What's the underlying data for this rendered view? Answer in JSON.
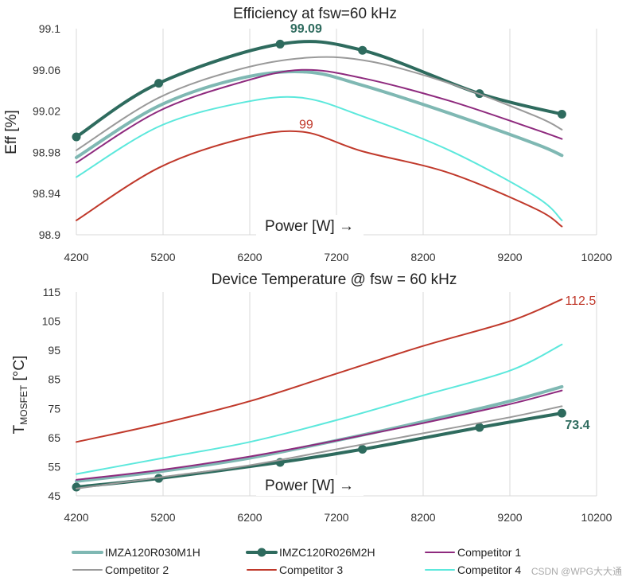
{
  "chart_data": [
    {
      "type": "line",
      "title": "Efficiency at fsw=60 kHz",
      "xlabel": "Power [W] →",
      "ylabel": "Eff [%]",
      "x_ticks": [
        "4200",
        "5200",
        "6200",
        "7200",
        "8200",
        "9200",
        "10200"
      ],
      "y_ticks": [
        "98.9",
        "98.94",
        "98.98",
        "99.02",
        "99.06",
        "99.1"
      ],
      "xlim": [
        4200,
        10200
      ],
      "ylim": [
        98.9,
        99.1
      ],
      "grid": "vertical",
      "annotations": [
        {
          "text": "99.09",
          "x": 6850,
          "y": 99.09,
          "color": "#2e6b5e",
          "bold": true
        },
        {
          "text": "99",
          "x": 6850,
          "y": 99.0,
          "color": "#c0392b",
          "bold": false
        }
      ],
      "series": [
        {
          "name": "IMZA120R030M1H",
          "color": "#7fb8b3",
          "width": 4,
          "x": [
            4200,
            5150,
            6100,
            6850,
            7500,
            8500,
            9500,
            9800
          ],
          "y": [
            98.975,
            99.025,
            99.052,
            99.058,
            99.045,
            99.018,
            98.988,
            98.977
          ]
        },
        {
          "name": "IMZC120R026M2H",
          "color": "#2e6b5e",
          "width": 4,
          "markers": true,
          "x": [
            4200,
            5150,
            6550,
            7500,
            8850,
            9800
          ],
          "y": [
            98.995,
            99.047,
            99.085,
            99.079,
            99.037,
            99.017
          ]
        },
        {
          "name": "Competitor 1",
          "color": "#8e2a7e",
          "width": 2,
          "x": [
            4200,
            5150,
            6100,
            6800,
            7500,
            8500,
            9500,
            9800
          ],
          "y": [
            98.97,
            99.02,
            99.048,
            99.06,
            99.052,
            99.03,
            99.002,
            98.993
          ]
        },
        {
          "name": "Competitor 2",
          "color": "#9a9a9a",
          "width": 2,
          "x": [
            4200,
            5150,
            6100,
            6900,
            7600,
            8500,
            9500,
            9800
          ],
          "y": [
            98.982,
            99.033,
            99.061,
            99.072,
            99.068,
            99.047,
            99.015,
            99.002
          ]
        },
        {
          "name": "Competitor 3",
          "color": "#c0392b",
          "width": 2,
          "x": [
            4200,
            5150,
            6100,
            6800,
            7500,
            8500,
            9500,
            9800
          ],
          "y": [
            98.914,
            98.965,
            98.993,
            99.0,
            98.981,
            98.96,
            98.925,
            98.908
          ]
        },
        {
          "name": "Competitor 4",
          "color": "#5ce8dc",
          "width": 2,
          "x": [
            4200,
            5150,
            6100,
            6800,
            7500,
            8500,
            9500,
            9800
          ],
          "y": [
            98.956,
            99.005,
            99.028,
            99.033,
            99.015,
            98.982,
            98.937,
            98.914
          ]
        }
      ]
    },
    {
      "type": "line",
      "title": "Device Temperature @ fsw = 60 kHz",
      "xlabel": "Power [W] →",
      "ylabel": "TMOSFET [°C]",
      "ylabel_main": "T",
      "ylabel_sub": "MOSFET",
      "ylabel_unit": " [°C]",
      "x_ticks": [
        "4200",
        "5200",
        "6200",
        "7200",
        "8200",
        "9200",
        "10200"
      ],
      "y_ticks": [
        "45",
        "55",
        "65",
        "75",
        "85",
        "95",
        "105",
        "115"
      ],
      "xlim": [
        4200,
        10200
      ],
      "ylim": [
        45,
        115
      ],
      "grid": "vertical",
      "annotations": [
        {
          "text": "112.5",
          "x": 9800,
          "y": 112.5,
          "color": "#c0392b",
          "bold": false
        },
        {
          "text": "73.4",
          "x": 9800,
          "y": 73.4,
          "color": "#2e6b5e",
          "bold": true
        }
      ],
      "series": [
        {
          "name": "IMZA120R030M1H",
          "color": "#7fb8b3",
          "width": 4,
          "x": [
            4200,
            5200,
            6200,
            7200,
            8200,
            9200,
            9800
          ],
          "y": [
            50,
            53.5,
            58,
            64,
            70.5,
            77.5,
            82.5
          ]
        },
        {
          "name": "IMZC120R026M2H",
          "color": "#2e6b5e",
          "width": 4,
          "markers": true,
          "x": [
            4200,
            5150,
            6550,
            7500,
            8850,
            9800
          ],
          "y": [
            48,
            51,
            56.5,
            61,
            68.5,
            73.4
          ]
        },
        {
          "name": "Competitor 1",
          "color": "#8e2a7e",
          "width": 2,
          "x": [
            4200,
            5200,
            6200,
            7200,
            8200,
            9200,
            9800
          ],
          "y": [
            50.5,
            54,
            58.5,
            64,
            70,
            76.5,
            81.2
          ]
        },
        {
          "name": "Competitor 2",
          "color": "#9a9a9a",
          "width": 2,
          "x": [
            4200,
            5200,
            6200,
            7200,
            8200,
            9200,
            9800
          ],
          "y": [
            47.5,
            51.5,
            55.5,
            61,
            66.5,
            72,
            75.8
          ]
        },
        {
          "name": "Competitor 3",
          "color": "#c0392b",
          "width": 2,
          "x": [
            4200,
            5200,
            6200,
            7200,
            8200,
            9200,
            9800
          ],
          "y": [
            63.5,
            70,
            77.5,
            87,
            96.5,
            105,
            112.5
          ]
        },
        {
          "name": "Competitor 4",
          "color": "#5ce8dc",
          "width": 2,
          "x": [
            4200,
            5200,
            6200,
            7200,
            8200,
            9200,
            9800
          ],
          "y": [
            52.5,
            58,
            63.5,
            71,
            79.5,
            88,
            97
          ]
        }
      ]
    }
  ],
  "legend": {
    "placement": "bottom",
    "items": [
      {
        "label": "IMZA120R030M1H",
        "color": "#7fb8b3",
        "width": 4,
        "marker": false
      },
      {
        "label": "IMZC120R026M2H",
        "color": "#2e6b5e",
        "width": 4,
        "marker": true
      },
      {
        "label": "Competitor 1",
        "color": "#8e2a7e",
        "width": 2,
        "marker": false
      },
      {
        "label": "Competitor 2",
        "color": "#9a9a9a",
        "width": 2,
        "marker": false
      },
      {
        "label": "Competitor 3",
        "color": "#c0392b",
        "width": 2,
        "marker": false
      },
      {
        "label": "Competitor 4",
        "color": "#5ce8dc",
        "width": 2,
        "marker": false
      }
    ]
  },
  "watermark": "CSDN @WPG大大通"
}
